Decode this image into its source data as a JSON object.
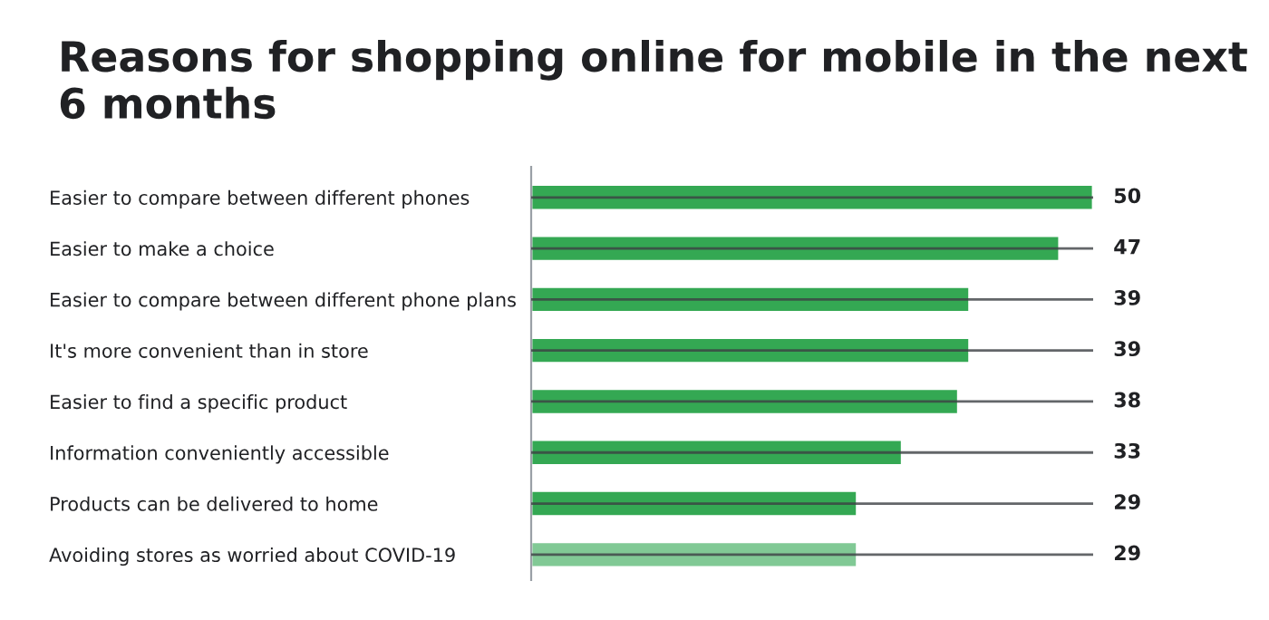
{
  "chart_data": {
    "type": "bar",
    "orientation": "horizontal",
    "title": "Reasons for shopping online for mobile in the next 6 months",
    "categories": [
      "Easier to compare between different phones",
      "Easier to make a choice",
      "Easier to compare between different phone plans",
      "It's more convenient than in store",
      "Easier to find a specific product",
      "Information conveniently accessible",
      "Products can be delivered to home",
      "Avoiding stores as worried about COVID-19"
    ],
    "values": [
      50,
      47,
      39,
      39,
      38,
      33,
      29,
      29
    ],
    "colors": [
      "#34a853",
      "#34a853",
      "#34a853",
      "#34a853",
      "#34a853",
      "#34a853",
      "#34a853",
      "#81c995"
    ],
    "xlim": [
      0,
      50
    ],
    "grid": "y",
    "tick_labels": "y",
    "data_labels": true
  }
}
